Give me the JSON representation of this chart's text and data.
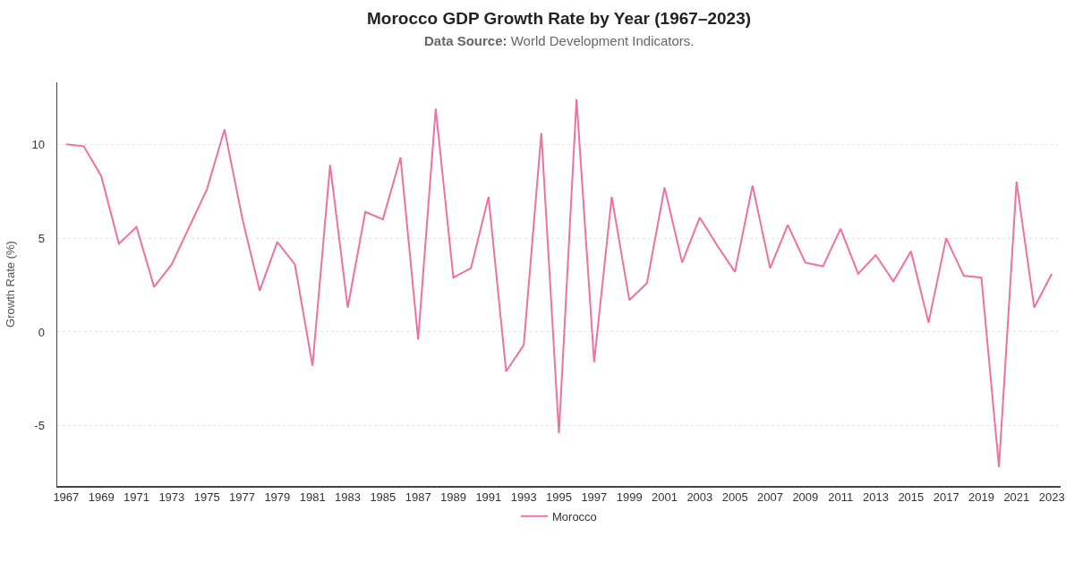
{
  "chart_data": {
    "type": "line",
    "title": "Morocco GDP Growth Rate by Year (1967–2023)",
    "subtitle": "Data Source: World Development Indicators.",
    "ylabel": "Growth Rate (%)",
    "x": [
      1967,
      1968,
      1969,
      1970,
      1971,
      1972,
      1973,
      1974,
      1975,
      1976,
      1977,
      1978,
      1979,
      1980,
      1981,
      1982,
      1983,
      1984,
      1985,
      1986,
      1987,
      1988,
      1989,
      1990,
      1991,
      1992,
      1993,
      1994,
      1995,
      1996,
      1997,
      1998,
      1999,
      2000,
      2001,
      2002,
      2003,
      2004,
      2005,
      2006,
      2007,
      2008,
      2009,
      2010,
      2011,
      2012,
      2013,
      2014,
      2015,
      2016,
      2017,
      2018,
      2019,
      2020,
      2021,
      2022,
      2023
    ],
    "series": [
      {
        "name": "Morocco",
        "color": "#f0719f",
        "values": [
          10.0,
          9.9,
          8.3,
          4.7,
          5.6,
          2.4,
          3.6,
          5.6,
          7.6,
          10.8,
          6.1,
          2.2,
          4.8,
          3.6,
          -1.8,
          8.9,
          1.3,
          6.4,
          6.0,
          9.3,
          -0.4,
          11.9,
          2.9,
          3.4,
          7.2,
          -2.1,
          -0.7,
          10.6,
          -5.4,
          12.4,
          -1.6,
          7.2,
          1.7,
          2.6,
          7.7,
          3.7,
          6.1,
          4.6,
          3.2,
          7.8,
          3.4,
          5.7,
          3.7,
          3.5,
          5.5,
          3.1,
          4.1,
          2.7,
          4.3,
          0.5,
          5.0,
          3.0,
          2.9,
          -7.2,
          8.0,
          1.3,
          3.1
        ]
      }
    ],
    "xlim": [
      1966.5,
      2023.5
    ],
    "xticks": [
      1967,
      1969,
      1971,
      1973,
      1975,
      1977,
      1979,
      1981,
      1983,
      1985,
      1987,
      1989,
      1991,
      1993,
      1995,
      1997,
      1999,
      2001,
      2003,
      2005,
      2007,
      2009,
      2011,
      2013,
      2015,
      2017,
      2019,
      2021,
      2023
    ],
    "ylim": [
      -8.2,
      13.3
    ],
    "yticks": [
      -5,
      0,
      5,
      10
    ],
    "grid": "y",
    "legend": "bottom"
  }
}
